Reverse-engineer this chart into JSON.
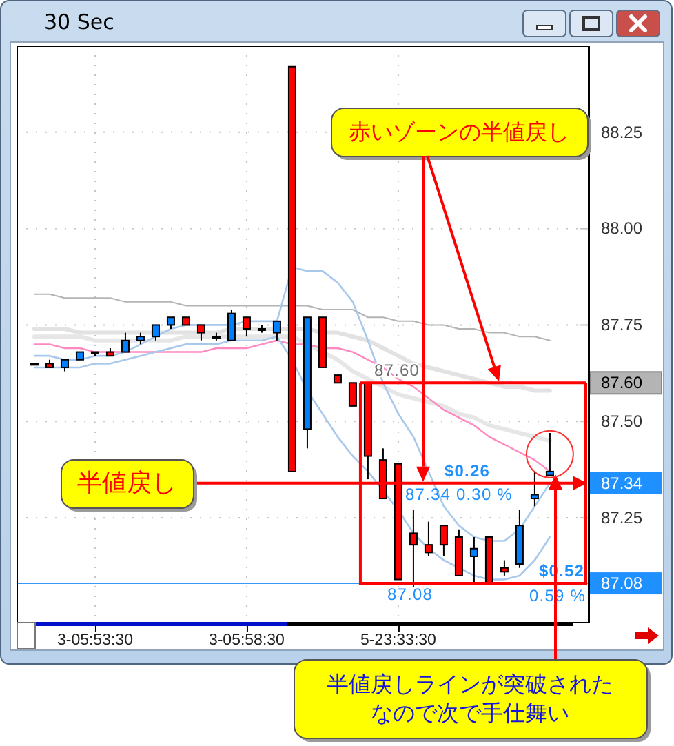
{
  "chart_data": {
    "type": "candlestick",
    "title": "30 Sec",
    "categories": [
      null,
      null,
      null,
      null,
      "3-05:53:30",
      null,
      null,
      null,
      null,
      null,
      null,
      null,
      null,
      null,
      "3-05:58:30",
      null,
      null,
      null,
      null,
      null,
      null,
      null,
      null,
      null,
      "5-23:33:30",
      null,
      null,
      null,
      null,
      null,
      null,
      null,
      null,
      null,
      null
    ],
    "ohlc": [
      [
        87.65,
        87.65,
        87.65,
        87.65
      ],
      [
        87.65,
        87.66,
        87.64,
        87.64
      ],
      [
        87.64,
        87.66,
        87.63,
        87.66
      ],
      [
        87.66,
        87.68,
        87.66,
        87.68
      ],
      [
        87.68,
        87.68,
        87.67,
        87.68
      ],
      [
        87.68,
        87.69,
        87.67,
        87.67
      ],
      [
        87.68,
        87.73,
        87.68,
        87.71
      ],
      [
        87.71,
        87.73,
        87.7,
        87.72
      ],
      [
        87.72,
        87.75,
        87.71,
        87.75
      ],
      [
        87.75,
        87.77,
        87.74,
        87.77
      ],
      [
        87.77,
        87.77,
        87.75,
        87.75
      ],
      [
        87.75,
        87.75,
        87.71,
        87.73
      ],
      [
        87.72,
        87.73,
        87.71,
        87.72
      ],
      [
        87.71,
        87.79,
        87.71,
        87.78
      ],
      [
        87.77,
        87.77,
        87.72,
        87.74
      ],
      [
        87.74,
        87.75,
        87.73,
        87.74
      ],
      [
        87.73,
        87.76,
        87.71,
        87.76
      ],
      [
        88.42,
        88.42,
        87.37,
        87.37
      ],
      [
        87.48,
        87.77,
        87.43,
        87.77
      ],
      [
        87.77,
        87.77,
        87.64,
        87.64
      ],
      [
        87.62,
        87.62,
        87.6,
        87.6
      ],
      [
        87.6,
        87.6,
        87.54,
        87.54
      ],
      [
        87.6,
        87.6,
        87.35,
        87.41
      ],
      [
        87.4,
        87.43,
        87.3,
        87.3
      ],
      [
        87.39,
        87.39,
        87.09,
        87.09
      ],
      [
        87.21,
        87.27,
        87.07,
        87.18
      ],
      [
        87.18,
        87.24,
        87.15,
        87.16
      ],
      [
        87.23,
        87.23,
        87.15,
        87.18
      ],
      [
        87.2,
        87.22,
        87.1,
        87.1
      ],
      [
        87.15,
        87.2,
        87.08,
        87.17
      ],
      [
        87.2,
        87.2,
        87.08,
        87.08
      ],
      [
        87.12,
        87.14,
        87.1,
        87.11
      ],
      [
        87.13,
        87.27,
        87.12,
        87.23
      ],
      [
        87.3,
        87.37,
        87.28,
        87.31
      ],
      [
        87.36,
        87.47,
        87.36,
        87.37
      ]
    ],
    "colors": [
      "#000000",
      "#ff0000",
      "#0080ff",
      "#0080ff",
      "#000000",
      "#ff0000",
      "#0080ff",
      "#0080ff",
      "#0080ff",
      "#0080ff",
      "#ff0000",
      "#ff0000",
      "#000000",
      "#0080ff",
      "#ff0000",
      "#000000",
      "#0080ff",
      "#ff0000",
      "#0080ff",
      "#ff0000",
      "#ff0000",
      "#ff0000",
      "#ff0000",
      "#ff0000",
      "#ff0000",
      "#ff0000",
      "#ff0000",
      "#ff0000",
      "#ff0000",
      "#0080ff",
      "#ff0000",
      "#ff0000",
      "#0080ff",
      "#0080ff",
      "#0080ff"
    ],
    "series": [
      {
        "type": "line",
        "color": "#b4b4b4",
        "values": [
          87.83,
          87.83,
          87.82,
          87.82,
          87.82,
          87.82,
          87.81,
          87.81,
          87.81,
          87.81,
          87.8,
          87.8,
          87.8,
          87.8,
          87.8,
          87.8,
          87.8,
          87.8,
          87.8,
          87.79,
          87.79,
          87.79,
          87.77,
          87.77,
          87.76,
          87.76,
          87.75,
          87.75,
          87.74,
          87.74,
          87.73,
          87.73,
          87.72,
          87.72,
          87.71
        ]
      },
      {
        "type": "line",
        "color": "#e2e2e2",
        "values": [
          87.74,
          87.74,
          87.74,
          87.73,
          87.73,
          87.73,
          87.73,
          87.73,
          87.73,
          87.73,
          87.73,
          87.73,
          87.73,
          87.74,
          87.74,
          87.74,
          87.74,
          87.74,
          87.74,
          87.73,
          87.73,
          87.72,
          87.71,
          87.69,
          87.67,
          87.65,
          87.64,
          87.63,
          87.62,
          87.61,
          87.6,
          87.59,
          87.59,
          87.58,
          87.58
        ]
      },
      {
        "type": "line",
        "color": "#e6e6e6",
        "values": [
          87.72,
          87.72,
          87.72,
          87.72,
          87.71,
          87.71,
          87.71,
          87.71,
          87.71,
          87.71,
          87.72,
          87.72,
          87.72,
          87.72,
          87.72,
          87.72,
          87.72,
          87.72,
          87.7,
          87.68,
          87.66,
          87.63,
          87.61,
          87.59,
          87.57,
          87.56,
          87.55,
          87.54,
          87.52,
          87.51,
          87.49,
          87.48,
          87.47,
          87.46,
          87.45
        ]
      },
      {
        "type": "line",
        "color": "#ff88c0",
        "values": [
          87.7,
          87.7,
          87.69,
          87.69,
          87.68,
          87.68,
          87.68,
          87.68,
          87.68,
          87.68,
          87.68,
          87.68,
          87.69,
          87.69,
          87.69,
          87.7,
          87.71,
          87.7,
          87.7,
          87.69,
          87.69,
          87.68,
          87.66,
          87.64,
          87.61,
          87.59,
          87.56,
          87.53,
          87.51,
          87.49,
          87.46,
          87.44,
          87.42,
          87.4,
          87.37
        ]
      },
      {
        "type": "line",
        "color": "#a8c8ec",
        "values": [
          87.67,
          87.67,
          87.66,
          87.66,
          87.67,
          87.67,
          87.68,
          87.7,
          87.72,
          87.74,
          87.75,
          87.75,
          87.75,
          87.75,
          87.76,
          87.76,
          87.76,
          87.9,
          87.89,
          87.89,
          87.86,
          87.81,
          87.71,
          87.6,
          87.52,
          87.46,
          87.37,
          87.28,
          87.23,
          87.2,
          87.19,
          87.19,
          87.22,
          87.28,
          87.34
        ]
      },
      {
        "type": "line",
        "color": "#a8c8ec",
        "values": [
          87.64,
          87.64,
          87.64,
          87.64,
          87.65,
          87.65,
          87.66,
          87.67,
          87.68,
          87.69,
          87.7,
          87.7,
          87.7,
          87.71,
          87.71,
          87.71,
          87.72,
          87.66,
          87.58,
          87.52,
          87.46,
          87.41,
          87.37,
          87.32,
          87.27,
          87.21,
          87.17,
          87.14,
          87.12,
          87.1,
          87.09,
          87.09,
          87.1,
          87.14,
          87.2
        ]
      }
    ],
    "ylim": [
      86.98,
      88.475
    ],
    "yticks": [
      87.25,
      {
        "value": 87.5,
        "label": "87.50"
      },
      87.75,
      {
        "value": 88,
        "label": "88.00"
      },
      88.25
    ],
    "grid": true,
    "ref_lines": [
      {
        "axis": "y",
        "value": 87.6,
        "label": "87.60",
        "color": "#ff0000"
      },
      {
        "axis": "y",
        "value": 87.34,
        "label": "87.34",
        "color": "#ff0000"
      },
      {
        "axis": "y",
        "value": 87.08,
        "label": "87.08",
        "color": "#3399ff"
      }
    ],
    "annotations": [
      "赤いゾーンの半値戻し",
      "半値戻し",
      "半値戻しラインが突破されたなので次で手仕舞い",
      {
        "text": "87.60",
        "y": 87.6
      },
      {
        "text": "$0.26",
        "y": 87.34
      },
      {
        "text": "87.34 0.30 %",
        "y": 87.34
      },
      {
        "text": "87.08",
        "y": 87.08
      },
      {
        "text": "$0.52",
        "y": 87.08
      },
      {
        "text": "0.59 %",
        "y": 87.08
      }
    ]
  }
}
